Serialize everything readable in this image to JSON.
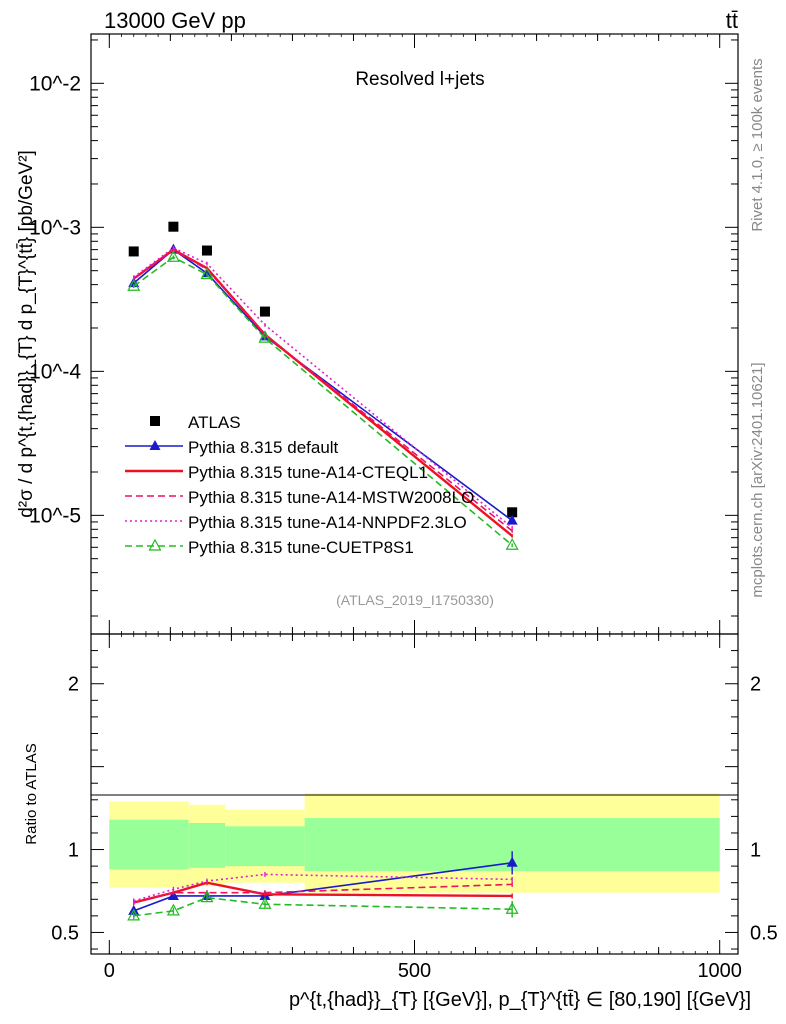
{
  "header": {
    "energy_label": "13000 GeV pp",
    "process_label": "tt̄"
  },
  "side_labels": {
    "rivet": "Rivet 4.1.0, ≥ 100k events",
    "mcplots": "mcplots.cern.ch [arXiv:2401.10621]"
  },
  "chart_data": {
    "type": "line",
    "title": "Resolved l+jets",
    "analysis_id": "(ATLAS_2019_I1750330)",
    "xlabel": "p^{t,{had}}_{T} [{GeV}], p_{T}^{tt̄} ∈ [80,190] [{GeV}]",
    "ylabel": "d²σ / d p^{t,{had}}_{T} d p_{T}^{tt̄} [pb/GeV²]",
    "ratio_ylabel": "Ratio to ATLAS",
    "xlim": [
      -30,
      1030
    ],
    "ylim": [
      1.5e-06,
      0.022
    ],
    "yscale": "log",
    "ratio_ylim": [
      0.37,
      2.3
    ],
    "x_ticks": [
      0,
      500,
      1000
    ],
    "x_tick_labels": [
      "0",
      "500",
      "1000"
    ],
    "y_tick_labels": [
      "10^-5",
      "10^-4",
      "10^-3",
      "10^-2"
    ],
    "ratio_ticks": [
      0.5,
      1,
      2
    ],
    "ratio_tick_labels": [
      "0.5",
      "1",
      "2"
    ],
    "bins": [
      [
        0,
        130
      ],
      [
        130,
        190
      ],
      [
        190,
        320
      ],
      [
        320,
        1000
      ]
    ],
    "data_x": [
      40,
      105,
      160,
      255,
      660
    ],
    "data_y": [
      0.00068,
      0.00101,
      0.00069,
      0.00026,
      1.05e-05
    ],
    "ratio_bands": [
      {
        "x": [
          0,
          130
        ],
        "green": [
          0.88,
          1.18
        ],
        "yellow": [
          0.77,
          1.29
        ]
      },
      {
        "x": [
          130,
          190
        ],
        "green": [
          0.89,
          1.16
        ],
        "yellow": [
          0.78,
          1.27
        ]
      },
      {
        "x": [
          190,
          320
        ],
        "green": [
          0.9,
          1.14
        ],
        "yellow": [
          0.8,
          1.24
        ]
      },
      {
        "x": [
          320,
          1000
        ],
        "green": [
          0.87,
          1.19
        ],
        "yellow": [
          0.74,
          1.34
        ]
      }
    ],
    "series": [
      {
        "name": "ATLAS",
        "color": "#000000",
        "marker": "square",
        "dash": "none",
        "x": [
          40,
          105,
          160,
          255,
          660
        ],
        "y": [
          0.00068,
          0.00101,
          0.00069,
          0.00026,
          1.05e-05
        ],
        "ratio": [
          1,
          1,
          1,
          1,
          1
        ]
      },
      {
        "name": "Pythia 8.315 default",
        "color": "#1a1acc",
        "marker": "triangle",
        "dash": "solid",
        "x": [
          40,
          105,
          160,
          255,
          660
        ],
        "y": [
          0.00041,
          0.0007,
          0.00048,
          0.000175,
          9.2e-06
        ],
        "ratio": [
          0.63,
          0.72,
          0.72,
          0.72,
          0.92
        ],
        "ratio_err": [
          0.02,
          0.02,
          0.02,
          0.02,
          0.07
        ]
      },
      {
        "name": "Pythia 8.315 tune-A14-CTEQL1",
        "color": "#ee1122",
        "marker": "none",
        "dash": "solid",
        "x": [
          40,
          105,
          160,
          255,
          660
        ],
        "y": [
          0.00044,
          0.0007,
          0.00052,
          0.00018,
          7.2e-06
        ],
        "ratio": [
          0.68,
          0.74,
          0.8,
          0.73,
          0.72
        ]
      },
      {
        "name": "Pythia 8.315 tune-A14-MSTW2008LO",
        "color": "#ee1166",
        "marker": "none",
        "dash": "dashed",
        "x": [
          40,
          105,
          160,
          255,
          660
        ],
        "y": [
          0.00044,
          0.0007,
          0.00051,
          0.00018,
          7.8e-06
        ],
        "ratio": [
          0.68,
          0.74,
          0.74,
          0.74,
          0.79
        ]
      },
      {
        "name": "Pythia 8.315 tune-A14-NNPDF2.3LO",
        "color": "#dd22cc",
        "marker": "none",
        "dash": "dotted",
        "x": [
          40,
          105,
          160,
          255,
          660
        ],
        "y": [
          0.00045,
          0.00072,
          0.00056,
          0.00021,
          8.2e-06
        ],
        "ratio": [
          0.69,
          0.76,
          0.81,
          0.85,
          0.82
        ]
      },
      {
        "name": "Pythia 8.315 tune-CUETP8S1",
        "color": "#22bb22",
        "marker": "open-triangle",
        "dash": "dashed",
        "x": [
          40,
          105,
          160,
          255,
          660
        ],
        "y": [
          0.00039,
          0.00062,
          0.00047,
          0.00017,
          6.2e-06
        ],
        "ratio": [
          0.6,
          0.63,
          0.71,
          0.67,
          0.64
        ],
        "ratio_err": [
          0.02,
          0.02,
          0.02,
          0.02,
          0.05
        ]
      }
    ]
  }
}
